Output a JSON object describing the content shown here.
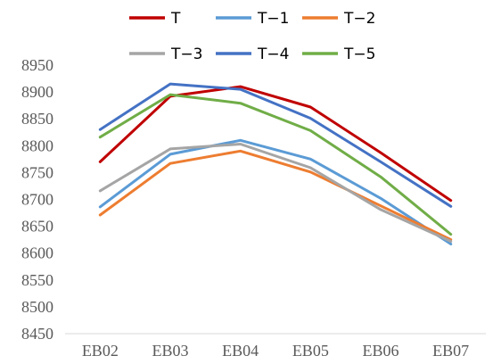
{
  "chart_data": {
    "type": "line",
    "title": "",
    "xlabel": "",
    "ylabel": "",
    "categories": [
      "EB02",
      "EB03",
      "EB04",
      "EB05",
      "EB06",
      "EB07"
    ],
    "ylim": [
      8450,
      8950
    ],
    "yticks": [
      "8450",
      "8500",
      "8550",
      "8600",
      "8650",
      "8700",
      "8750",
      "8800",
      "8850",
      "8900",
      "8950"
    ],
    "grid": false,
    "legend_position": "top",
    "series": [
      {
        "name": "T",
        "color": "#C00000",
        "values": [
          8770,
          8892,
          8910,
          8872,
          8787,
          8698
        ]
      },
      {
        "name": "T−1",
        "color": "#5B9BD5",
        "values": [
          8686,
          8784,
          8810,
          8775,
          8702,
          8617
        ]
      },
      {
        "name": "T−2",
        "color": "#ED7D31",
        "values": [
          8671,
          8767,
          8790,
          8751,
          8688,
          8625
        ]
      },
      {
        "name": "T−3",
        "color": "#A5A5A5",
        "values": [
          8716,
          8794,
          8803,
          8759,
          8681,
          8622
        ]
      },
      {
        "name": "T−4",
        "color": "#4472C4",
        "values": [
          8830,
          8915,
          8905,
          8851,
          8770,
          8687
        ]
      },
      {
        "name": "T−5",
        "color": "#70AD47",
        "values": [
          8816,
          8895,
          8879,
          8828,
          8742,
          8635
        ]
      }
    ]
  }
}
